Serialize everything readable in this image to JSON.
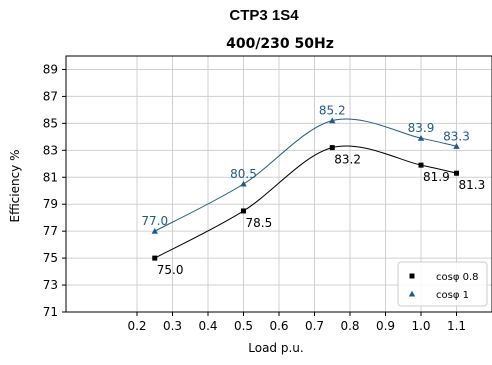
{
  "chart_data": {
    "type": "line",
    "title": "CTP3 1S4",
    "subtitle": "400/230 50Hz",
    "xlabel": "Load p.u.",
    "ylabel": "Efficiency %",
    "xlim": [
      0.0,
      1.2
    ],
    "ylim": [
      71,
      90
    ],
    "xticks": [
      "0.2",
      "0.3",
      "0.4",
      "0.5",
      "0.6",
      "0.7",
      "0.8",
      "0.9",
      "1.0",
      "1.1"
    ],
    "yticks": [
      "71",
      "73",
      "75",
      "77",
      "79",
      "81",
      "83",
      "85",
      "87",
      "89"
    ],
    "grid": true,
    "legend_position": "bottom-right",
    "series": [
      {
        "name": "cosφ 0.8",
        "color": "#000000",
        "marker": "square",
        "x": [
          0.25,
          0.5,
          0.75,
          1.0,
          1.1
        ],
        "values": [
          75.0,
          78.5,
          83.2,
          81.9,
          81.3
        ],
        "labels": [
          "75.0",
          "78.5",
          "83.2",
          "81.9",
          "81.3"
        ]
      },
      {
        "name": "cosφ 1",
        "color": "#1f5a8c",
        "marker": "triangle",
        "x": [
          0.25,
          0.5,
          0.75,
          1.0,
          1.1
        ],
        "values": [
          77.0,
          80.5,
          85.2,
          83.9,
          83.3
        ],
        "labels": [
          "77.0",
          "80.5",
          "85.2",
          "83.9",
          "83.3"
        ]
      }
    ]
  }
}
